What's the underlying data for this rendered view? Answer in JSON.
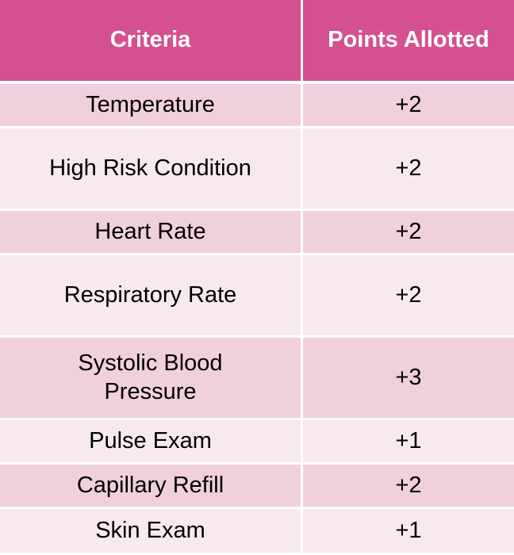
{
  "table": {
    "headers": [
      "Criteria",
      "Points Allotted"
    ],
    "rows": [
      {
        "criteria": "Temperature",
        "points": "+2"
      },
      {
        "criteria": "High Risk Condition",
        "points": "+2"
      },
      {
        "criteria": "Heart Rate",
        "points": "+2"
      },
      {
        "criteria": "Respiratory Rate",
        "points": "+2"
      },
      {
        "criteria": "Systolic Blood Pressure",
        "points": "+3"
      },
      {
        "criteria": "Pulse Exam",
        "points": "+1"
      },
      {
        "criteria": "Capillary Refill",
        "points": "+2"
      },
      {
        "criteria": "Skin Exam",
        "points": "+1"
      }
    ]
  },
  "colors": {
    "header_bg": "#d4508e",
    "header_text": "#ffffff",
    "row_band_dark": "#efd0dc",
    "row_band_light": "#f8e9ef"
  }
}
